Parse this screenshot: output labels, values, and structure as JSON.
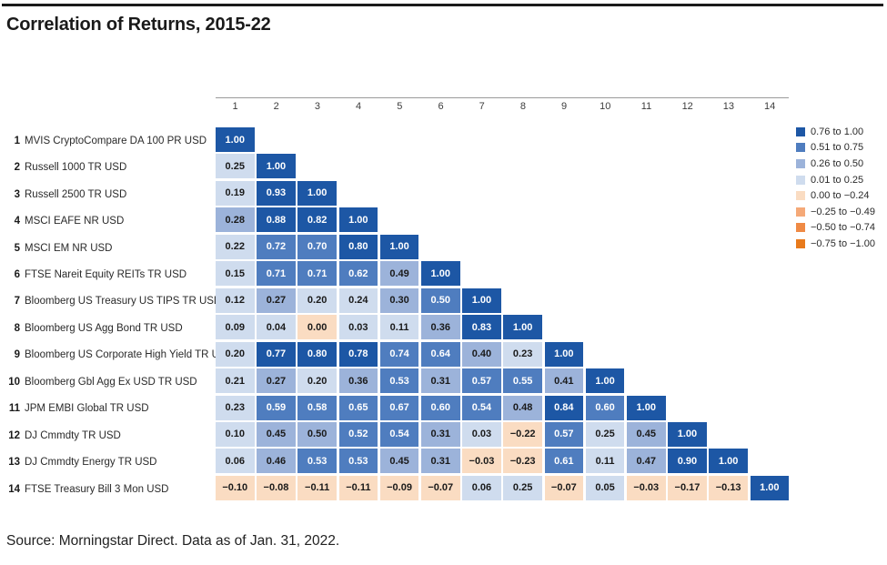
{
  "title": "Correlation of Returns, 2015-22",
  "source": "Source: Morningstar Direct. Data as of Jan. 31, 2022.",
  "chart_data": {
    "type": "heatmap",
    "title": "Correlation of Returns, 2015-22",
    "columns": [
      "1",
      "2",
      "3",
      "4",
      "5",
      "6",
      "7",
      "8",
      "9",
      "10",
      "11",
      "12",
      "13",
      "14"
    ],
    "rows": [
      {
        "num": "1",
        "label": "MVIS CryptoCompare DA 100 PR USD",
        "values": [
          1.0
        ]
      },
      {
        "num": "2",
        "label": "Russell 1000 TR USD",
        "values": [
          0.25,
          1.0
        ]
      },
      {
        "num": "3",
        "label": "Russell 2500 TR USD",
        "values": [
          0.19,
          0.93,
          1.0
        ]
      },
      {
        "num": "4",
        "label": "MSCI EAFE NR USD",
        "values": [
          0.28,
          0.88,
          0.82,
          1.0
        ]
      },
      {
        "num": "5",
        "label": "MSCI EM NR USD",
        "values": [
          0.22,
          0.72,
          0.7,
          0.8,
          1.0
        ]
      },
      {
        "num": "6",
        "label": "FTSE Nareit Equity REITs TR USD",
        "values": [
          0.15,
          0.71,
          0.71,
          0.62,
          0.49,
          1.0
        ]
      },
      {
        "num": "7",
        "label": "Bloomberg US Treasury US TIPS TR USD",
        "values": [
          0.12,
          0.27,
          0.2,
          0.24,
          0.3,
          0.5,
          1.0
        ]
      },
      {
        "num": "8",
        "label": "Bloomberg US Agg Bond TR USD",
        "values": [
          0.09,
          0.04,
          0.0,
          0.03,
          0.11,
          0.36,
          0.83,
          1.0
        ]
      },
      {
        "num": "9",
        "label": "Bloomberg US Corporate High Yield TR USD",
        "values": [
          0.2,
          0.77,
          0.8,
          0.78,
          0.74,
          0.64,
          0.4,
          0.23,
          1.0
        ]
      },
      {
        "num": "10",
        "label": "Bloomberg Gbl Agg Ex USD TR USD",
        "values": [
          0.21,
          0.27,
          0.2,
          0.36,
          0.53,
          0.31,
          0.57,
          0.55,
          0.41,
          1.0
        ]
      },
      {
        "num": "11",
        "label": "JPM EMBI Global TR USD",
        "values": [
          0.23,
          0.59,
          0.58,
          0.65,
          0.67,
          0.6,
          0.54,
          0.48,
          0.84,
          0.6,
          1.0
        ]
      },
      {
        "num": "12",
        "label": "DJ Cmmdty TR USD",
        "values": [
          0.1,
          0.45,
          0.5,
          0.52,
          0.54,
          0.31,
          0.03,
          -0.22,
          0.57,
          0.25,
          0.45,
          1.0
        ]
      },
      {
        "num": "13",
        "label": "DJ Cmmdty Energy TR USD",
        "values": [
          0.06,
          0.46,
          0.53,
          0.53,
          0.45,
          0.31,
          -0.03,
          -0.23,
          0.61,
          0.11,
          0.47,
          0.9,
          1.0
        ]
      },
      {
        "num": "14",
        "label": "FTSE Treasury Bill 3 Mon USD",
        "values": [
          -0.1,
          -0.08,
          -0.11,
          -0.11,
          -0.09,
          -0.07,
          0.06,
          0.25,
          -0.07,
          0.05,
          -0.03,
          -0.17,
          -0.13,
          1.0
        ]
      }
    ],
    "legend": [
      {
        "label": "0.76 to 1.00",
        "color": "#1d57a5",
        "text": "#ffffff"
      },
      {
        "label": "0.51 to 0.75",
        "color": "#4f7dbf",
        "text": "#ffffff"
      },
      {
        "label": "0.26 to 0.50",
        "color": "#9cb3da",
        "text": "#1a1a1a"
      },
      {
        "label": "0.01 to 0.25",
        "color": "#cfdcee",
        "text": "#1a1a1a"
      },
      {
        "label": "0.00 to −0.24",
        "color": "#fadcc2",
        "text": "#1a1a1a"
      },
      {
        "label": "−0.25 to −0.49",
        "color": "#f5a978",
        "text": "#1a1a1a"
      },
      {
        "label": "−0.50 to −0.74",
        "color": "#ef8a45",
        "text": "#1a1a1a"
      },
      {
        "label": "−0.75 to −1.00",
        "color": "#e87a1c",
        "text": "#ffffff"
      }
    ],
    "bucket_lower_bounds": [
      0.755,
      0.505,
      0.255,
      0.005,
      -0.245,
      -0.495,
      -0.745
    ],
    "cell_bucket_overrides": [
      {
        "row": 7,
        "col": 6,
        "bucket": 1
      }
    ],
    "source": "Source: Morningstar Direct. Data as of Jan. 31, 2022."
  }
}
